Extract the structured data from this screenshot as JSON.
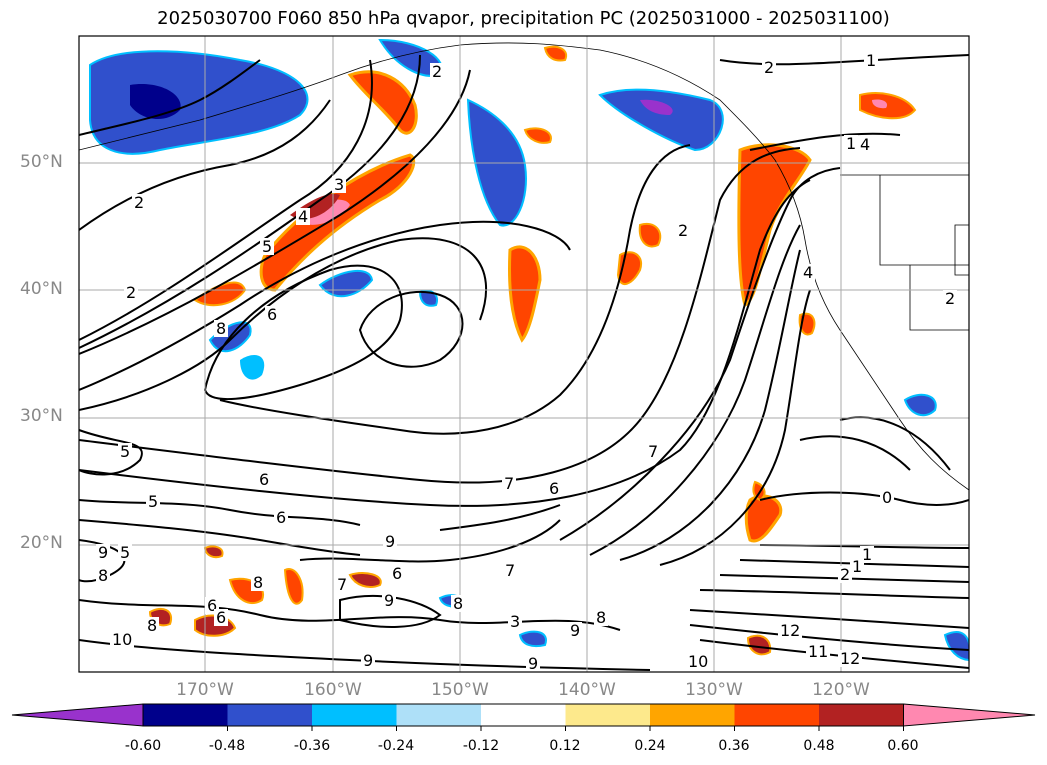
{
  "title": "2025030700 F060 850 hPa qvapor, precipitation PC (2025031000 - 2025031100)",
  "map": {
    "lat_labels": [
      {
        "lat": 50,
        "text": "50°N"
      },
      {
        "lat": 40,
        "text": "40°N"
      },
      {
        "lat": 30,
        "text": "30°N"
      },
      {
        "lat": 20,
        "text": "20°N"
      }
    ],
    "lon_labels": [
      {
        "lon": -170,
        "text": "170°W"
      },
      {
        "lon": -160,
        "text": "160°W"
      },
      {
        "lon": -150,
        "text": "150°W"
      },
      {
        "lon": -140,
        "text": "140°W"
      },
      {
        "lon": -130,
        "text": "130°W"
      },
      {
        "lon": -120,
        "text": "120°W"
      }
    ],
    "contour_labels": [
      "1",
      "2",
      "2",
      "2",
      "4",
      "3",
      "4",
      "5",
      "6",
      "8",
      "2",
      "1",
      "1",
      "2",
      "2",
      "4",
      "5",
      "5",
      "6",
      "6",
      "5",
      "7",
      "8",
      "9",
      "9",
      "8",
      "8",
      "6",
      "7",
      "6",
      "6",
      "8",
      "9",
      "9",
      "9",
      "7",
      "8",
      "9",
      "10",
      "11",
      "12",
      "10",
      "12",
      "3",
      "2",
      "1",
      "0",
      "7",
      "6"
    ]
  },
  "colorbar": {
    "colors": [
      "#9932cc",
      "#00008b",
      "#3050cc",
      "#00bfff",
      "#aee0f8",
      "#ffffff",
      "#fde98c",
      "#ffa500",
      "#ff4500",
      "#b22222",
      "#ff88b0"
    ],
    "tick_labels": [
      "-0.60",
      "-0.48",
      "-0.36",
      "-0.24",
      "-0.12",
      "0.12",
      "0.24",
      "0.36",
      "0.48",
      "0.60"
    ]
  }
}
